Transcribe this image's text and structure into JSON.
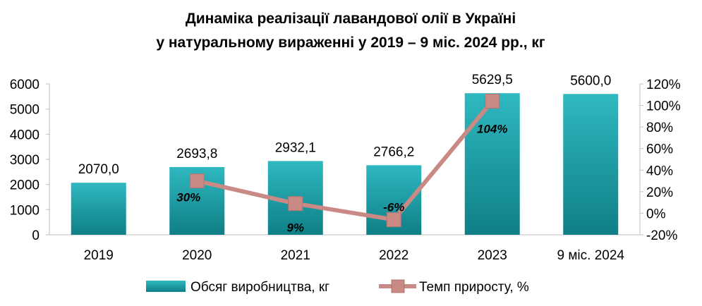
{
  "chart_data": {
    "type": "bar",
    "title": "Динаміка реалізації лавандової олії в Україні",
    "subtitle": "у натуральному вираженні у 2019 – 9 міс. 2024 рр., кг",
    "categories": [
      "2019",
      "2020",
      "2021",
      "2022",
      "2023",
      "9 міс. 2024"
    ],
    "series": [
      {
        "name": "Обсяг виробництва, кг",
        "type": "bar",
        "axis": "left",
        "color": "#1f9ea6",
        "values": [
          2070.0,
          2693.8,
          2932.1,
          2766.2,
          5629.5,
          5600.0
        ],
        "labels": [
          "2070,0",
          "2693,8",
          "2932,1",
          "2766,2",
          "5629,5",
          "5600,0"
        ]
      },
      {
        "name": "Темп приросту, %",
        "type": "line",
        "axis": "right",
        "color": "#c98a85",
        "values": [
          null,
          30,
          9,
          -6,
          104,
          null
        ],
        "labels": [
          "",
          "30%",
          "9%",
          "-6%",
          "104%",
          ""
        ]
      }
    ],
    "y_left": {
      "ylim": [
        0,
        6000
      ],
      "ticks": [
        "0",
        "1000",
        "2000",
        "3000",
        "4000",
        "5000",
        "6000"
      ]
    },
    "y_right": {
      "ylim": [
        -20,
        120
      ],
      "ticks": [
        "-20%",
        "0%",
        "20%",
        "40%",
        "60%",
        "80%",
        "100%",
        "120%"
      ]
    },
    "legend": {
      "placement": "bottom"
    },
    "grid": false
  }
}
